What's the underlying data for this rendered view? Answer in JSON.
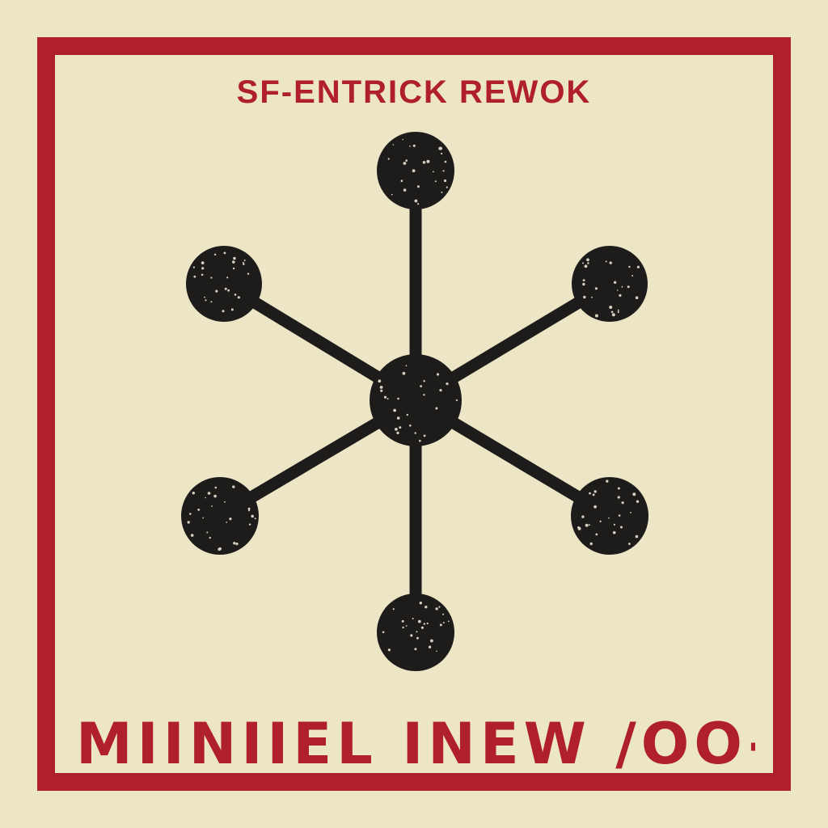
{
  "poster": {
    "title": "SF-ENTRICK REWOK",
    "caption": "MIINIIEL INEW /OO-"
  },
  "colors": {
    "background": "#ece5c6",
    "accent_red": "#b0202c",
    "ink": "#1e1c1a",
    "speckle": "#f4efdc"
  },
  "graph": {
    "icon": "network-hub-icon",
    "center_node": "hub-node",
    "outer_nodes": [
      "node-top",
      "node-upper-right",
      "node-lower-right",
      "node-bottom",
      "node-lower-left",
      "node-upper-left"
    ]
  }
}
